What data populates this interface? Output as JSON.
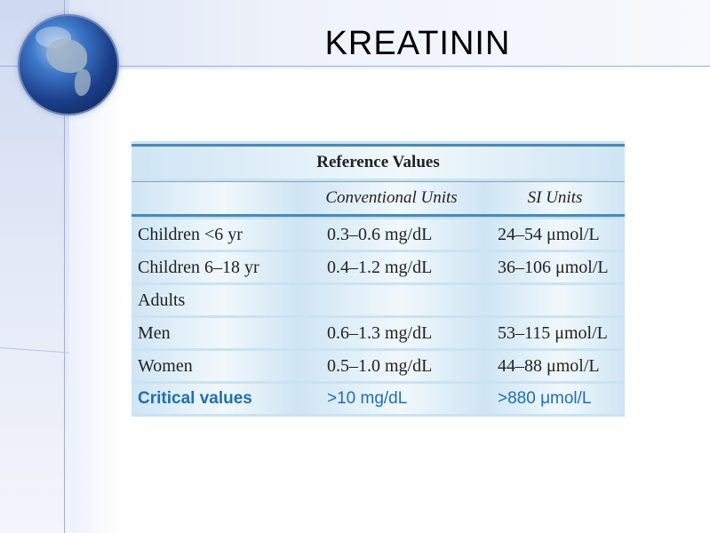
{
  "slide": {
    "title": "KREATININ"
  },
  "table": {
    "caption": "Reference Values",
    "columns": [
      "",
      "Conventional Units",
      "SI Units"
    ],
    "rows": [
      {
        "label": "Children <6 yr",
        "conventional": "0.3–0.6 mg/dL",
        "si": "24–54 μmol/L"
      },
      {
        "label": "Children 6–18 yr",
        "conventional": "0.4–1.2 mg/dL",
        "si": "36–106 μmol/L"
      },
      {
        "label": "Adults",
        "conventional": "",
        "si": ""
      },
      {
        "label": "Men",
        "conventional": "0.6–1.3 mg/dL",
        "si": "53–115 μmol/L"
      },
      {
        "label": "Women",
        "conventional": "0.5–1.0 mg/dL",
        "si": "44–88 μmol/L"
      }
    ],
    "critical": {
      "label": "Critical values",
      "conventional": ">10 mg/dL",
      "si": ">880 μmol/L"
    }
  }
}
